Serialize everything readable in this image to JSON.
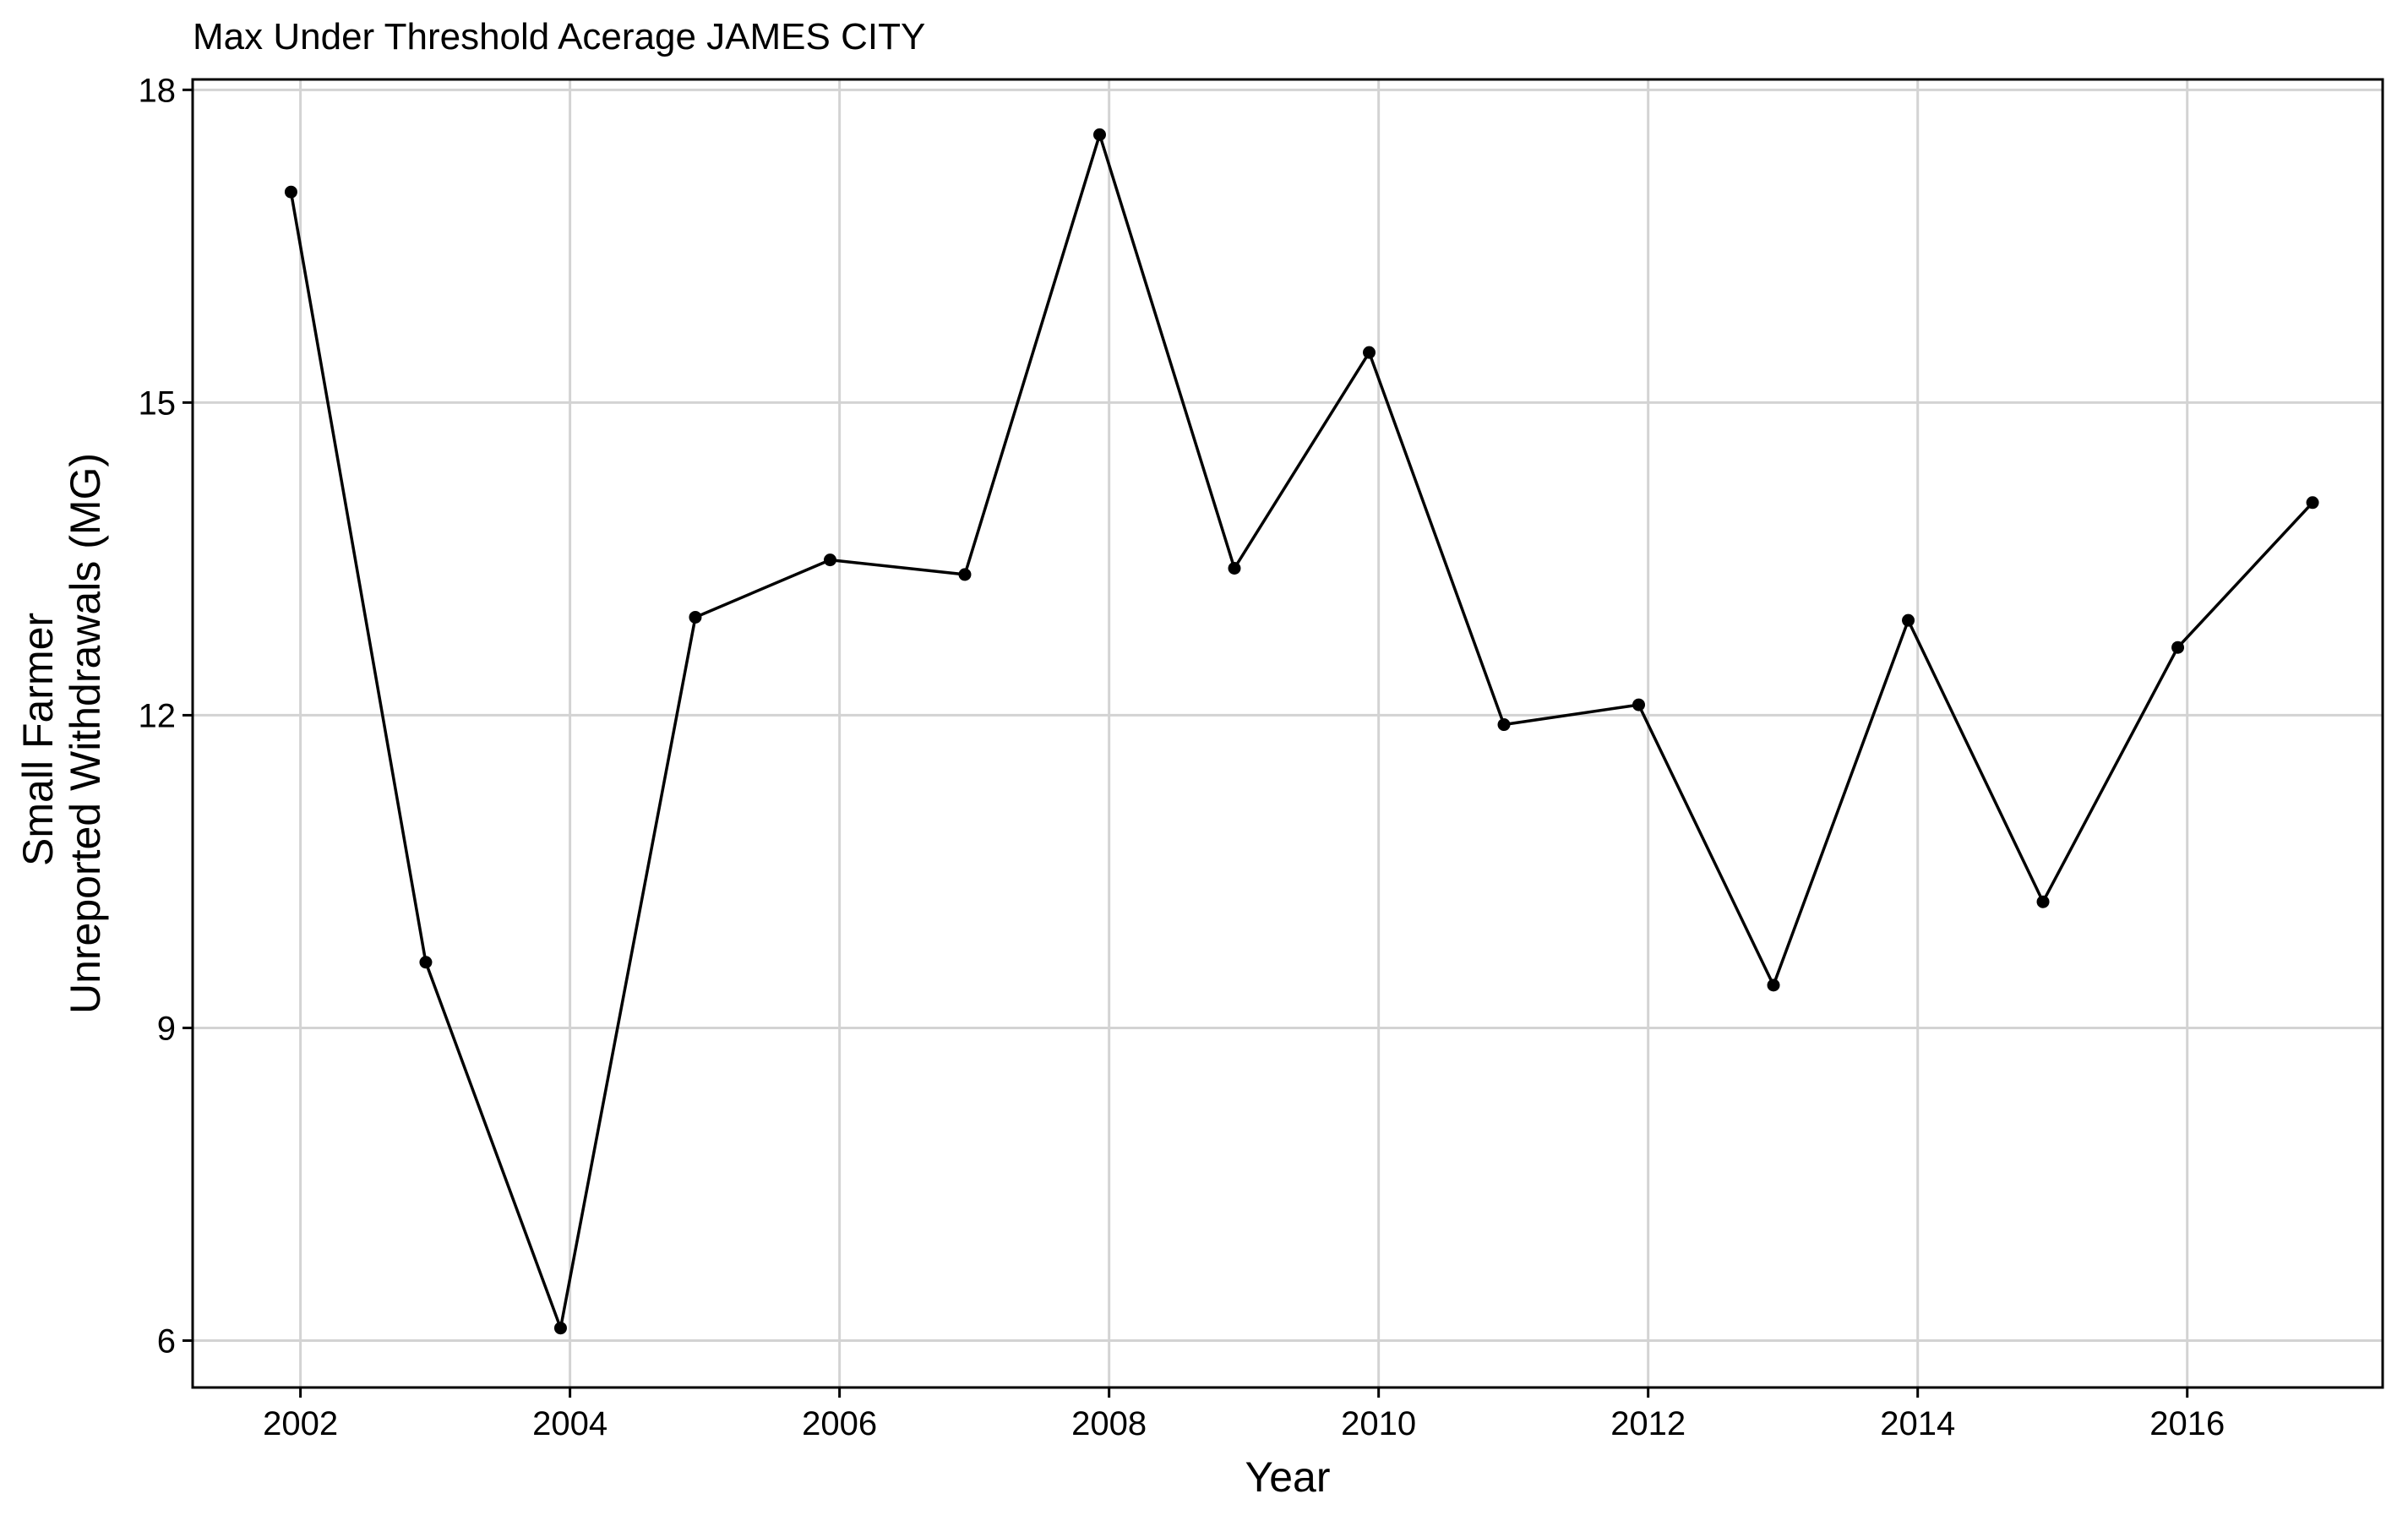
{
  "chart_data": {
    "type": "line",
    "title": "Max Under Threshold Acerage JAMES CITY",
    "xlabel": "Year",
    "ylabel_lines": [
      "Small Farmer",
      "Unreported Withdrawals (MG)"
    ],
    "x": [
      2001.93,
      2002.93,
      2003.93,
      2004.93,
      2005.93,
      2006.93,
      2007.93,
      2008.93,
      2009.93,
      2010.93,
      2011.93,
      2012.93,
      2013.93,
      2014.93,
      2015.93,
      2016.93
    ],
    "values": [
      17.02,
      9.63,
      6.12,
      12.94,
      13.49,
      13.35,
      17.57,
      13.41,
      15.48,
      11.91,
      12.1,
      9.41,
      12.91,
      10.21,
      12.65,
      14.04
    ],
    "xlim": [
      2001.2,
      2017.45
    ],
    "ylim": [
      5.55,
      18.1
    ],
    "xticks": [
      2002,
      2004,
      2006,
      2008,
      2010,
      2012,
      2014,
      2016
    ],
    "xtick_labels": [
      "2002",
      "2004",
      "2006",
      "2008",
      "2010",
      "2012",
      "2014",
      "2016"
    ],
    "yticks": [
      6,
      9,
      12,
      15,
      18
    ],
    "ytick_labels": [
      "6",
      "9",
      "12",
      "15",
      "18"
    ],
    "grid": true,
    "legend": "none"
  }
}
